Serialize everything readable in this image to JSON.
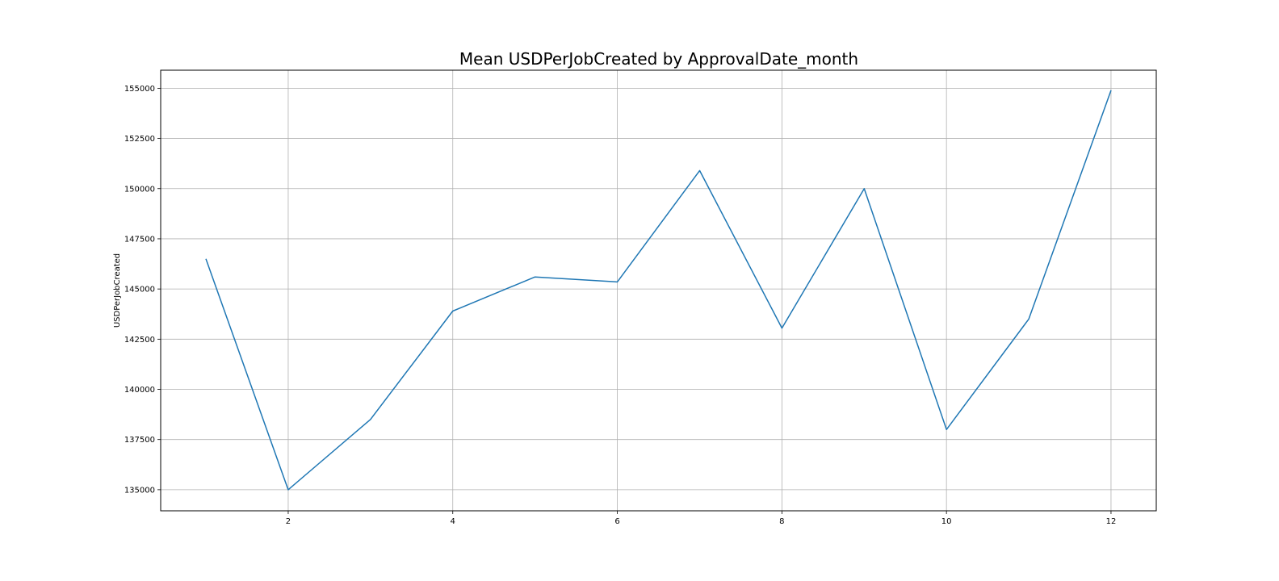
{
  "chart_data": {
    "type": "line",
    "title": "Mean USDPerJobCreated by ApprovalDate_month",
    "xlabel": "",
    "ylabel": "USDPerJobCreated",
    "x": [
      1,
      2,
      3,
      4,
      5,
      6,
      7,
      8,
      9,
      10,
      11,
      12
    ],
    "series": [
      {
        "values": [
          146500,
          135000,
          138500,
          143900,
          145600,
          145350,
          150900,
          143050,
          150000,
          138000,
          143500,
          154900
        ]
      }
    ],
    "xticks": [
      2,
      4,
      6,
      8,
      10,
      12
    ],
    "yticks": [
      135000,
      137500,
      140000,
      142500,
      145000,
      147500,
      150000,
      152500,
      155000
    ],
    "xlim": [
      0.45,
      12.55
    ],
    "ylim": [
      133950,
      155900
    ],
    "grid": true,
    "line_color": "#1f77b4"
  }
}
